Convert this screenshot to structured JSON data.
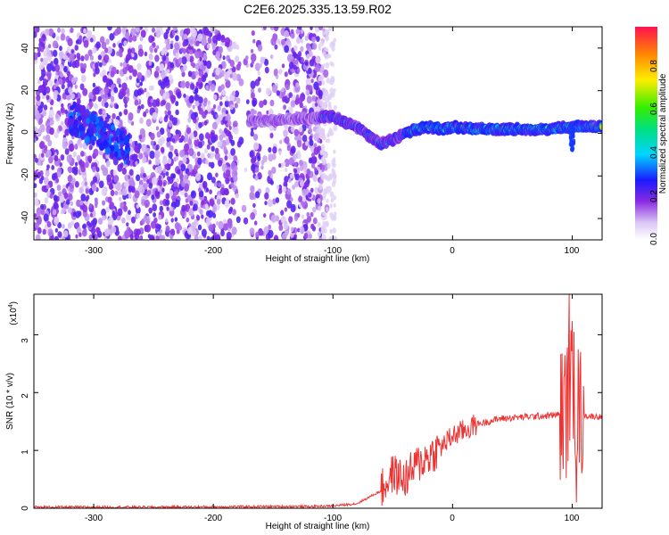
{
  "title": "C2E6.2025.335.13.59.R02",
  "top": {
    "xlabel": "Height of straight line (km)",
    "ylabel": "Frequency (Hz)",
    "xticks": [
      "-300",
      "-200",
      "-100",
      "0",
      "100"
    ],
    "yticks": [
      "40",
      "20",
      "0",
      "-20",
      "-40"
    ],
    "colorbar_label": "Normalized spectral amplitude",
    "colorbar_ticks": [
      "0.8",
      "0.6",
      "0.4",
      "0.2",
      "0.0"
    ]
  },
  "bottom": {
    "xlabel": "Height of straight line (km)",
    "ylabel": "SNR (10 * v/v)",
    "multiplier": "(x10",
    "multiplier_exp": "4",
    "multiplier_close": ")",
    "xticks": [
      "-300",
      "-200",
      "-100",
      "0",
      "100"
    ],
    "yticks": [
      "3",
      "2",
      "1",
      "0"
    ]
  },
  "chart_data": [
    {
      "type": "heatmap",
      "title": "C2E6.2025.335.13.59.R02",
      "xlabel": "Height of straight line (km)",
      "ylabel": "Frequency (Hz)",
      "xlim": [
        -350,
        125
      ],
      "ylim": [
        -50,
        50
      ],
      "colorbar": {
        "label": "Normalized spectral amplitude",
        "range": [
          0.0,
          1.0
        ]
      },
      "ridge": {
        "x": [
          -300,
          -250,
          -170,
          -150,
          -120,
          -100,
          -90,
          -80,
          -70,
          -60,
          -50,
          -40,
          -30,
          -20,
          -10,
          0,
          20,
          50,
          80,
          100,
          125
        ],
        "y": [
          7,
          6,
          6,
          6,
          7,
          8,
          5,
          3,
          -1,
          -5,
          -3,
          0,
          2,
          3,
          2,
          3,
          2,
          2,
          2,
          3,
          3
        ]
      }
    },
    {
      "type": "line",
      "xlabel": "Height of straight line (km)",
      "ylabel": "SNR (10 * v/v)",
      "scale": 10000,
      "xlim": [
        -350,
        125
      ],
      "ylim": [
        0,
        3.7
      ],
      "series": [
        {
          "name": "SNR",
          "color": "#ee3333",
          "x": [
            -350,
            -250,
            -150,
            -120,
            -100,
            -80,
            -60,
            -50,
            -40,
            -30,
            -20,
            -10,
            0,
            20,
            40,
            60,
            80,
            90,
            95,
            100,
            105,
            110,
            125
          ],
          "y": [
            0.02,
            0.02,
            0.03,
            0.03,
            0.04,
            0.08,
            0.3,
            0.6,
            0.5,
            0.75,
            0.9,
            1.05,
            1.25,
            1.45,
            1.55,
            1.58,
            1.6,
            1.62,
            1.7,
            2.1,
            1.7,
            1.6,
            1.58
          ]
        }
      ]
    }
  ]
}
